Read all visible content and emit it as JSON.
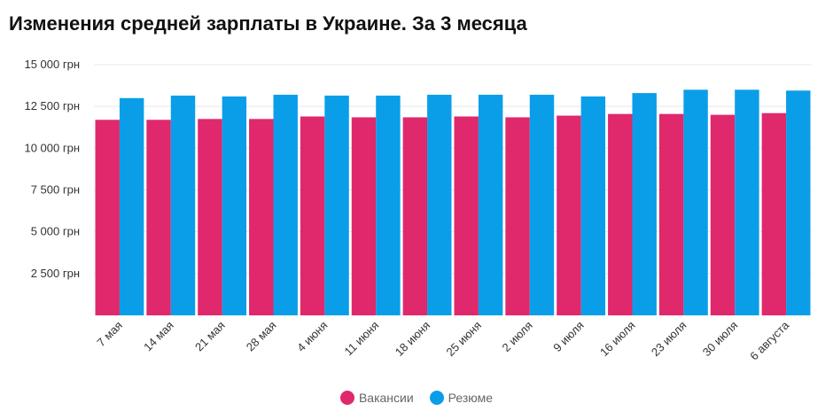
{
  "chart_data": {
    "type": "bar",
    "title": "Изменения средней зарплаты в Украине. За 3 месяца",
    "xlabel": "",
    "ylabel": "",
    "ylim": [
      0,
      15000
    ],
    "y_ticks": [
      2500,
      5000,
      7500,
      10000,
      12500,
      15000
    ],
    "y_tick_labels": [
      "2 500 грн",
      "5 000 грн",
      "7 500 грн",
      "10 000 грн",
      "12 500 грн",
      "15 000 грн"
    ],
    "grid": true,
    "legend_position": "bottom",
    "categories": [
      "7 мая",
      "14 мая",
      "21 мая",
      "28 мая",
      "4 июня",
      "11 июня",
      "18 июня",
      "25 июня",
      "2 июля",
      "9 июля",
      "16 июля",
      "23 июля",
      "30 июля",
      "6 августа"
    ],
    "series": [
      {
        "name": "Вакансии",
        "color": "#e0286c",
        "values": [
          11700,
          11700,
          11750,
          11750,
          11900,
          11850,
          11850,
          11900,
          11850,
          11950,
          12050,
          12050,
          12000,
          12100
        ]
      },
      {
        "name": "Резюме",
        "color": "#0a9ee8",
        "values": [
          13000,
          13150,
          13100,
          13200,
          13150,
          13150,
          13200,
          13200,
          13200,
          13100,
          13300,
          13500,
          13500,
          13450
        ]
      }
    ]
  }
}
